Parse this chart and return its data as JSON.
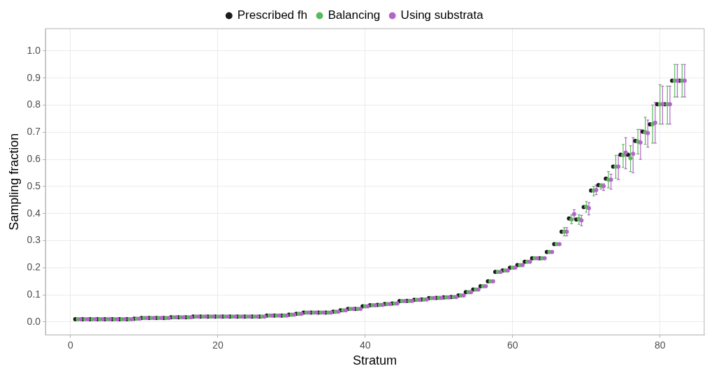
{
  "chart_data": {
    "type": "scatter",
    "xlabel": "Stratum",
    "ylabel": "Sampling fraction",
    "x": [
      1,
      2,
      3,
      4,
      5,
      6,
      7,
      8,
      9,
      10,
      11,
      12,
      13,
      14,
      15,
      16,
      17,
      18,
      19,
      20,
      21,
      22,
      23,
      24,
      25,
      26,
      27,
      28,
      29,
      30,
      31,
      32,
      33,
      34,
      35,
      36,
      37,
      38,
      39,
      40,
      41,
      42,
      43,
      44,
      45,
      46,
      47,
      48,
      49,
      50,
      51,
      52,
      53,
      54,
      55,
      56,
      57,
      58,
      59,
      60,
      61,
      62,
      63,
      64,
      65,
      66,
      67,
      68,
      69,
      70,
      71,
      72,
      73,
      74,
      75,
      76,
      77,
      78,
      79,
      80,
      81,
      82,
      83
    ],
    "xlim": [
      -3.4,
      86
    ],
    "xticks": [
      0,
      20,
      40,
      60,
      80
    ],
    "ylim": [
      -0.048,
      1.082
    ],
    "yticks": [
      {
        "value": 0,
        "label": "0.0"
      },
      0.1,
      0.2,
      0.3,
      0.4,
      0.5,
      0.6,
      0.7,
      0.8,
      0.9,
      {
        "value": 1,
        "label": "1.0"
      }
    ],
    "grid": true,
    "legend": "top",
    "marker": "circle",
    "series": [
      {
        "name": "Prescribed fh",
        "color": "#1a1a1a",
        "x": [
          0.65,
          1.65,
          2.65,
          3.65,
          4.65,
          5.65,
          6.65,
          7.65,
          8.65,
          9.65,
          10.65,
          11.65,
          12.65,
          13.65,
          14.65,
          15.65,
          16.65,
          17.65,
          18.65,
          19.65,
          20.65,
          21.65,
          22.65,
          23.65,
          24.65,
          25.65,
          26.65,
          27.65,
          28.65,
          29.65,
          30.65,
          31.65,
          32.65,
          33.65,
          34.65,
          35.65,
          36.65,
          37.65,
          38.65,
          39.65,
          40.65,
          41.65,
          42.65,
          43.65,
          44.65,
          45.65,
          46.65,
          47.65,
          48.65,
          49.65,
          50.65,
          51.65,
          52.65,
          53.65,
          54.65,
          55.65,
          56.65,
          57.65,
          58.65,
          59.65,
          60.65,
          61.65,
          62.65,
          63.65,
          64.65,
          65.65,
          66.65,
          67.65,
          68.65,
          69.65,
          70.65,
          71.65,
          72.65,
          73.65,
          74.65,
          75.65,
          76.65,
          77.65,
          78.65,
          79.65,
          80.65,
          81.65,
          82.65
        ],
        "values": [
          0.01,
          0.01,
          0.01,
          0.01,
          0.01,
          0.01,
          0.01,
          0.01,
          0.012,
          0.015,
          0.015,
          0.015,
          0.015,
          0.017,
          0.017,
          0.017,
          0.02,
          0.02,
          0.02,
          0.02,
          0.02,
          0.02,
          0.02,
          0.02,
          0.02,
          0.02,
          0.024,
          0.024,
          0.024,
          0.027,
          0.03,
          0.035,
          0.035,
          0.035,
          0.035,
          0.038,
          0.043,
          0.048,
          0.048,
          0.058,
          0.062,
          0.063,
          0.066,
          0.068,
          0.077,
          0.078,
          0.082,
          0.083,
          0.088,
          0.089,
          0.091,
          0.092,
          0.098,
          0.11,
          0.12,
          0.132,
          0.15,
          0.185,
          0.19,
          0.2,
          0.21,
          0.222,
          0.235,
          0.235,
          0.258,
          0.287,
          0.333,
          0.382,
          0.378,
          0.424,
          0.485,
          0.505,
          0.529,
          0.573,
          0.617,
          0.617,
          0.668,
          0.702,
          0.729,
          0.803,
          0.803,
          0.89,
          0.89
        ]
      },
      {
        "name": "Balancing",
        "color": "#5cb85c",
        "values": [
          0.01,
          0.01,
          0.01,
          0.01,
          0.01,
          0.01,
          0.01,
          0.01,
          0.012,
          0.015,
          0.015,
          0.015,
          0.015,
          0.017,
          0.017,
          0.017,
          0.02,
          0.02,
          0.02,
          0.02,
          0.02,
          0.02,
          0.02,
          0.02,
          0.02,
          0.02,
          0.024,
          0.024,
          0.024,
          0.027,
          0.03,
          0.035,
          0.035,
          0.035,
          0.035,
          0.038,
          0.043,
          0.048,
          0.048,
          0.058,
          0.062,
          0.063,
          0.066,
          0.068,
          0.077,
          0.078,
          0.082,
          0.083,
          0.088,
          0.089,
          0.091,
          0.092,
          0.098,
          0.11,
          0.12,
          0.132,
          0.15,
          0.185,
          0.19,
          0.2,
          0.21,
          0.222,
          0.235,
          0.235,
          0.258,
          0.287,
          0.333,
          0.378,
          0.38,
          0.425,
          0.485,
          0.502,
          0.525,
          0.573,
          0.615,
          0.604,
          0.665,
          0.7,
          0.73,
          0.803,
          0.803,
          0.89,
          0.89
        ],
        "errors": [
          null,
          null,
          null,
          null,
          null,
          null,
          null,
          null,
          null,
          null,
          null,
          null,
          null,
          null,
          null,
          null,
          null,
          null,
          null,
          null,
          null,
          null,
          null,
          null,
          null,
          null,
          null,
          null,
          null,
          null,
          null,
          null,
          null,
          null,
          null,
          null,
          null,
          null,
          null,
          null,
          null,
          null,
          null,
          null,
          null,
          null,
          null,
          null,
          null,
          null,
          null,
          null,
          null,
          null,
          null,
          null,
          null,
          null,
          null,
          null,
          null,
          null,
          null,
          null,
          null,
          null,
          0.015,
          [
            0.362,
            0.395
          ],
          [
            0.36,
            0.395
          ],
          [
            0.405,
            0.445
          ],
          [
            0.465,
            0.5
          ],
          [
            0.49,
            0.51
          ],
          [
            0.495,
            0.555
          ],
          [
            0.53,
            0.615
          ],
          [
            0.57,
            0.655
          ],
          [
            0.555,
            0.65
          ],
          [
            0.62,
            0.71
          ],
          [
            0.655,
            0.755
          ],
          [
            0.66,
            0.8
          ],
          [
            0.73,
            0.875
          ],
          [
            0.73,
            0.87
          ],
          [
            0.83,
            0.95
          ],
          [
            0.83,
            0.95
          ]
        ]
      },
      {
        "name": "Using substrata",
        "color": "#b266c8",
        "x": [
          1.35,
          2.35,
          3.35,
          4.35,
          5.35,
          6.35,
          7.35,
          8.35,
          9.35,
          10.35,
          11.35,
          12.35,
          13.35,
          14.35,
          15.35,
          16.35,
          17.35,
          18.35,
          19.35,
          20.35,
          21.35,
          22.35,
          23.35,
          24.35,
          25.35,
          26.35,
          27.35,
          28.35,
          29.35,
          30.35,
          31.35,
          32.35,
          33.35,
          34.35,
          35.35,
          36.35,
          37.35,
          38.35,
          39.35,
          40.35,
          41.35,
          42.35,
          43.35,
          44.35,
          45.35,
          46.35,
          47.35,
          48.35,
          49.35,
          50.35,
          51.35,
          52.35,
          53.35,
          54.35,
          55.35,
          56.35,
          57.35,
          58.35,
          59.35,
          60.35,
          61.35,
          62.35,
          63.35,
          64.35,
          65.35,
          66.35,
          67.35,
          68.35,
          69.35,
          70.35,
          71.35,
          72.35,
          73.35,
          74.35,
          75.35,
          76.35,
          77.35,
          78.35,
          79.35,
          80.35,
          81.35,
          82.35,
          83.35
        ],
        "values": [
          0.01,
          0.01,
          0.01,
          0.01,
          0.01,
          0.01,
          0.01,
          0.01,
          0.012,
          0.015,
          0.015,
          0.015,
          0.015,
          0.017,
          0.017,
          0.017,
          0.02,
          0.02,
          0.02,
          0.02,
          0.02,
          0.02,
          0.02,
          0.02,
          0.02,
          0.02,
          0.024,
          0.024,
          0.024,
          0.027,
          0.03,
          0.035,
          0.035,
          0.035,
          0.035,
          0.038,
          0.043,
          0.048,
          0.048,
          0.058,
          0.062,
          0.063,
          0.066,
          0.068,
          0.077,
          0.078,
          0.082,
          0.083,
          0.088,
          0.089,
          0.091,
          0.092,
          0.098,
          0.11,
          0.12,
          0.132,
          0.15,
          0.185,
          0.19,
          0.2,
          0.21,
          0.222,
          0.235,
          0.235,
          0.258,
          0.287,
          0.333,
          0.398,
          0.375,
          0.42,
          0.487,
          0.501,
          0.525,
          0.573,
          0.625,
          0.62,
          0.662,
          0.697,
          0.735,
          0.803,
          0.803,
          0.89,
          0.89
        ],
        "errors": [
          null,
          null,
          null,
          null,
          null,
          null,
          null,
          null,
          null,
          null,
          null,
          null,
          null,
          null,
          null,
          null,
          null,
          null,
          null,
          null,
          null,
          null,
          null,
          null,
          null,
          null,
          null,
          null,
          null,
          null,
          null,
          null,
          null,
          null,
          null,
          null,
          null,
          null,
          null,
          null,
          null,
          null,
          null,
          null,
          null,
          null,
          null,
          null,
          null,
          null,
          null,
          null,
          null,
          null,
          null,
          null,
          null,
          null,
          null,
          null,
          null,
          null,
          null,
          null,
          null,
          null,
          0.015,
          [
            0.38,
            0.414
          ],
          [
            0.355,
            0.393
          ],
          [
            0.395,
            0.44
          ],
          [
            0.47,
            0.505
          ],
          [
            0.485,
            0.51
          ],
          [
            0.49,
            0.545
          ],
          [
            0.525,
            0.615
          ],
          [
            0.565,
            0.68
          ],
          [
            0.55,
            0.68
          ],
          [
            0.6,
            0.71
          ],
          [
            0.645,
            0.745
          ],
          [
            0.66,
            0.81
          ],
          [
            0.73,
            0.87
          ],
          [
            0.73,
            0.87
          ],
          [
            0.83,
            0.95
          ],
          [
            0.83,
            0.95
          ]
        ]
      }
    ]
  }
}
